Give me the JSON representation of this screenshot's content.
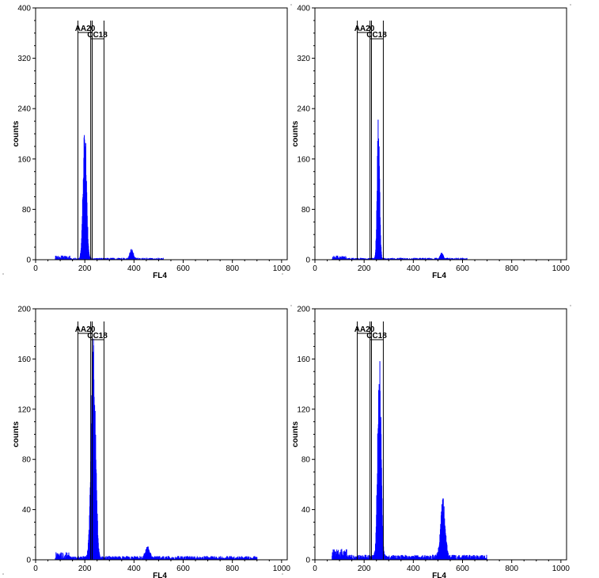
{
  "chart_data": [
    {
      "type": "bar",
      "xlabel": "FL4",
      "ylabel": "counts",
      "xlim": [
        0,
        1023
      ],
      "ylim": [
        0,
        400
      ],
      "xticks": [
        "0",
        "200",
        "400",
        "600",
        "800",
        "1000"
      ],
      "yticks": [
        "0",
        "80",
        "160",
        "240",
        "320",
        "400"
      ],
      "series_color": "#0000ff",
      "gates": [
        {
          "label": "AA20",
          "x_start": 172,
          "x_end": 230
        },
        {
          "label": "CC18",
          "x_start": 224,
          "x_end": 278
        }
      ],
      "peaks": [
        {
          "center": 200,
          "height": 205,
          "sigma": 7
        },
        {
          "center": 390,
          "height": 14,
          "sigma": 7
        }
      ],
      "baseline": {
        "from": 80,
        "to": 520,
        "level": 3
      },
      "edge_spike": 12
    },
    {
      "type": "bar",
      "xlabel": "FL4",
      "ylabel": "counts",
      "xlim": [
        0,
        1023
      ],
      "ylim": [
        0,
        400
      ],
      "xticks": [
        "0",
        "200",
        "400",
        "600",
        "800",
        "1000"
      ],
      "yticks": [
        "0",
        "80",
        "160",
        "240",
        "320",
        "400"
      ],
      "series_color": "#0000ff",
      "gates": [
        {
          "label": "AA20",
          "x_start": 172,
          "x_end": 230
        },
        {
          "label": "CC18",
          "x_start": 224,
          "x_end": 278
        }
      ],
      "peaks": [
        {
          "center": 258,
          "height": 210,
          "sigma": 5
        },
        {
          "center": 516,
          "height": 9,
          "sigma": 6
        }
      ],
      "baseline": {
        "from": 70,
        "to": 620,
        "level": 3
      },
      "edge_spike": 18
    },
    {
      "type": "bar",
      "xlabel": "FL4",
      "ylabel": "counts",
      "xlim": [
        0,
        1023
      ],
      "ylim": [
        0,
        200
      ],
      "xticks": [
        "0",
        "200",
        "400",
        "600",
        "800",
        "1000"
      ],
      "yticks": [
        "0",
        "40",
        "80",
        "120",
        "160",
        "200"
      ],
      "series_color": "#0000ff",
      "gates": [
        {
          "label": "AA20",
          "x_start": 172,
          "x_end": 230
        },
        {
          "label": "CC18",
          "x_start": 224,
          "x_end": 278
        }
      ],
      "peaks": [
        {
          "center": 235,
          "height": 165,
          "sigma": 9
        },
        {
          "center": 455,
          "height": 9,
          "sigma": 8
        }
      ],
      "baseline": {
        "from": 80,
        "to": 900,
        "level": 3
      },
      "edge_spike": 4
    },
    {
      "type": "bar",
      "xlabel": "FL4",
      "ylabel": "counts",
      "xlim": [
        0,
        1023
      ],
      "ylim": [
        0,
        200
      ],
      "xticks": [
        "0",
        "200",
        "400",
        "600",
        "800",
        "1000"
      ],
      "yticks": [
        "0",
        "40",
        "80",
        "120",
        "160",
        "200"
      ],
      "series_color": "#0000ff",
      "gates": [
        {
          "label": "AA20",
          "x_start": 172,
          "x_end": 230
        },
        {
          "label": "CC18",
          "x_start": 224,
          "x_end": 278
        }
      ],
      "peaks": [
        {
          "center": 262,
          "height": 155,
          "sigma": 7
        },
        {
          "center": 520,
          "height": 45,
          "sigma": 9
        }
      ],
      "baseline": {
        "from": 70,
        "to": 700,
        "level": 4
      },
      "edge_spike": 40
    }
  ]
}
